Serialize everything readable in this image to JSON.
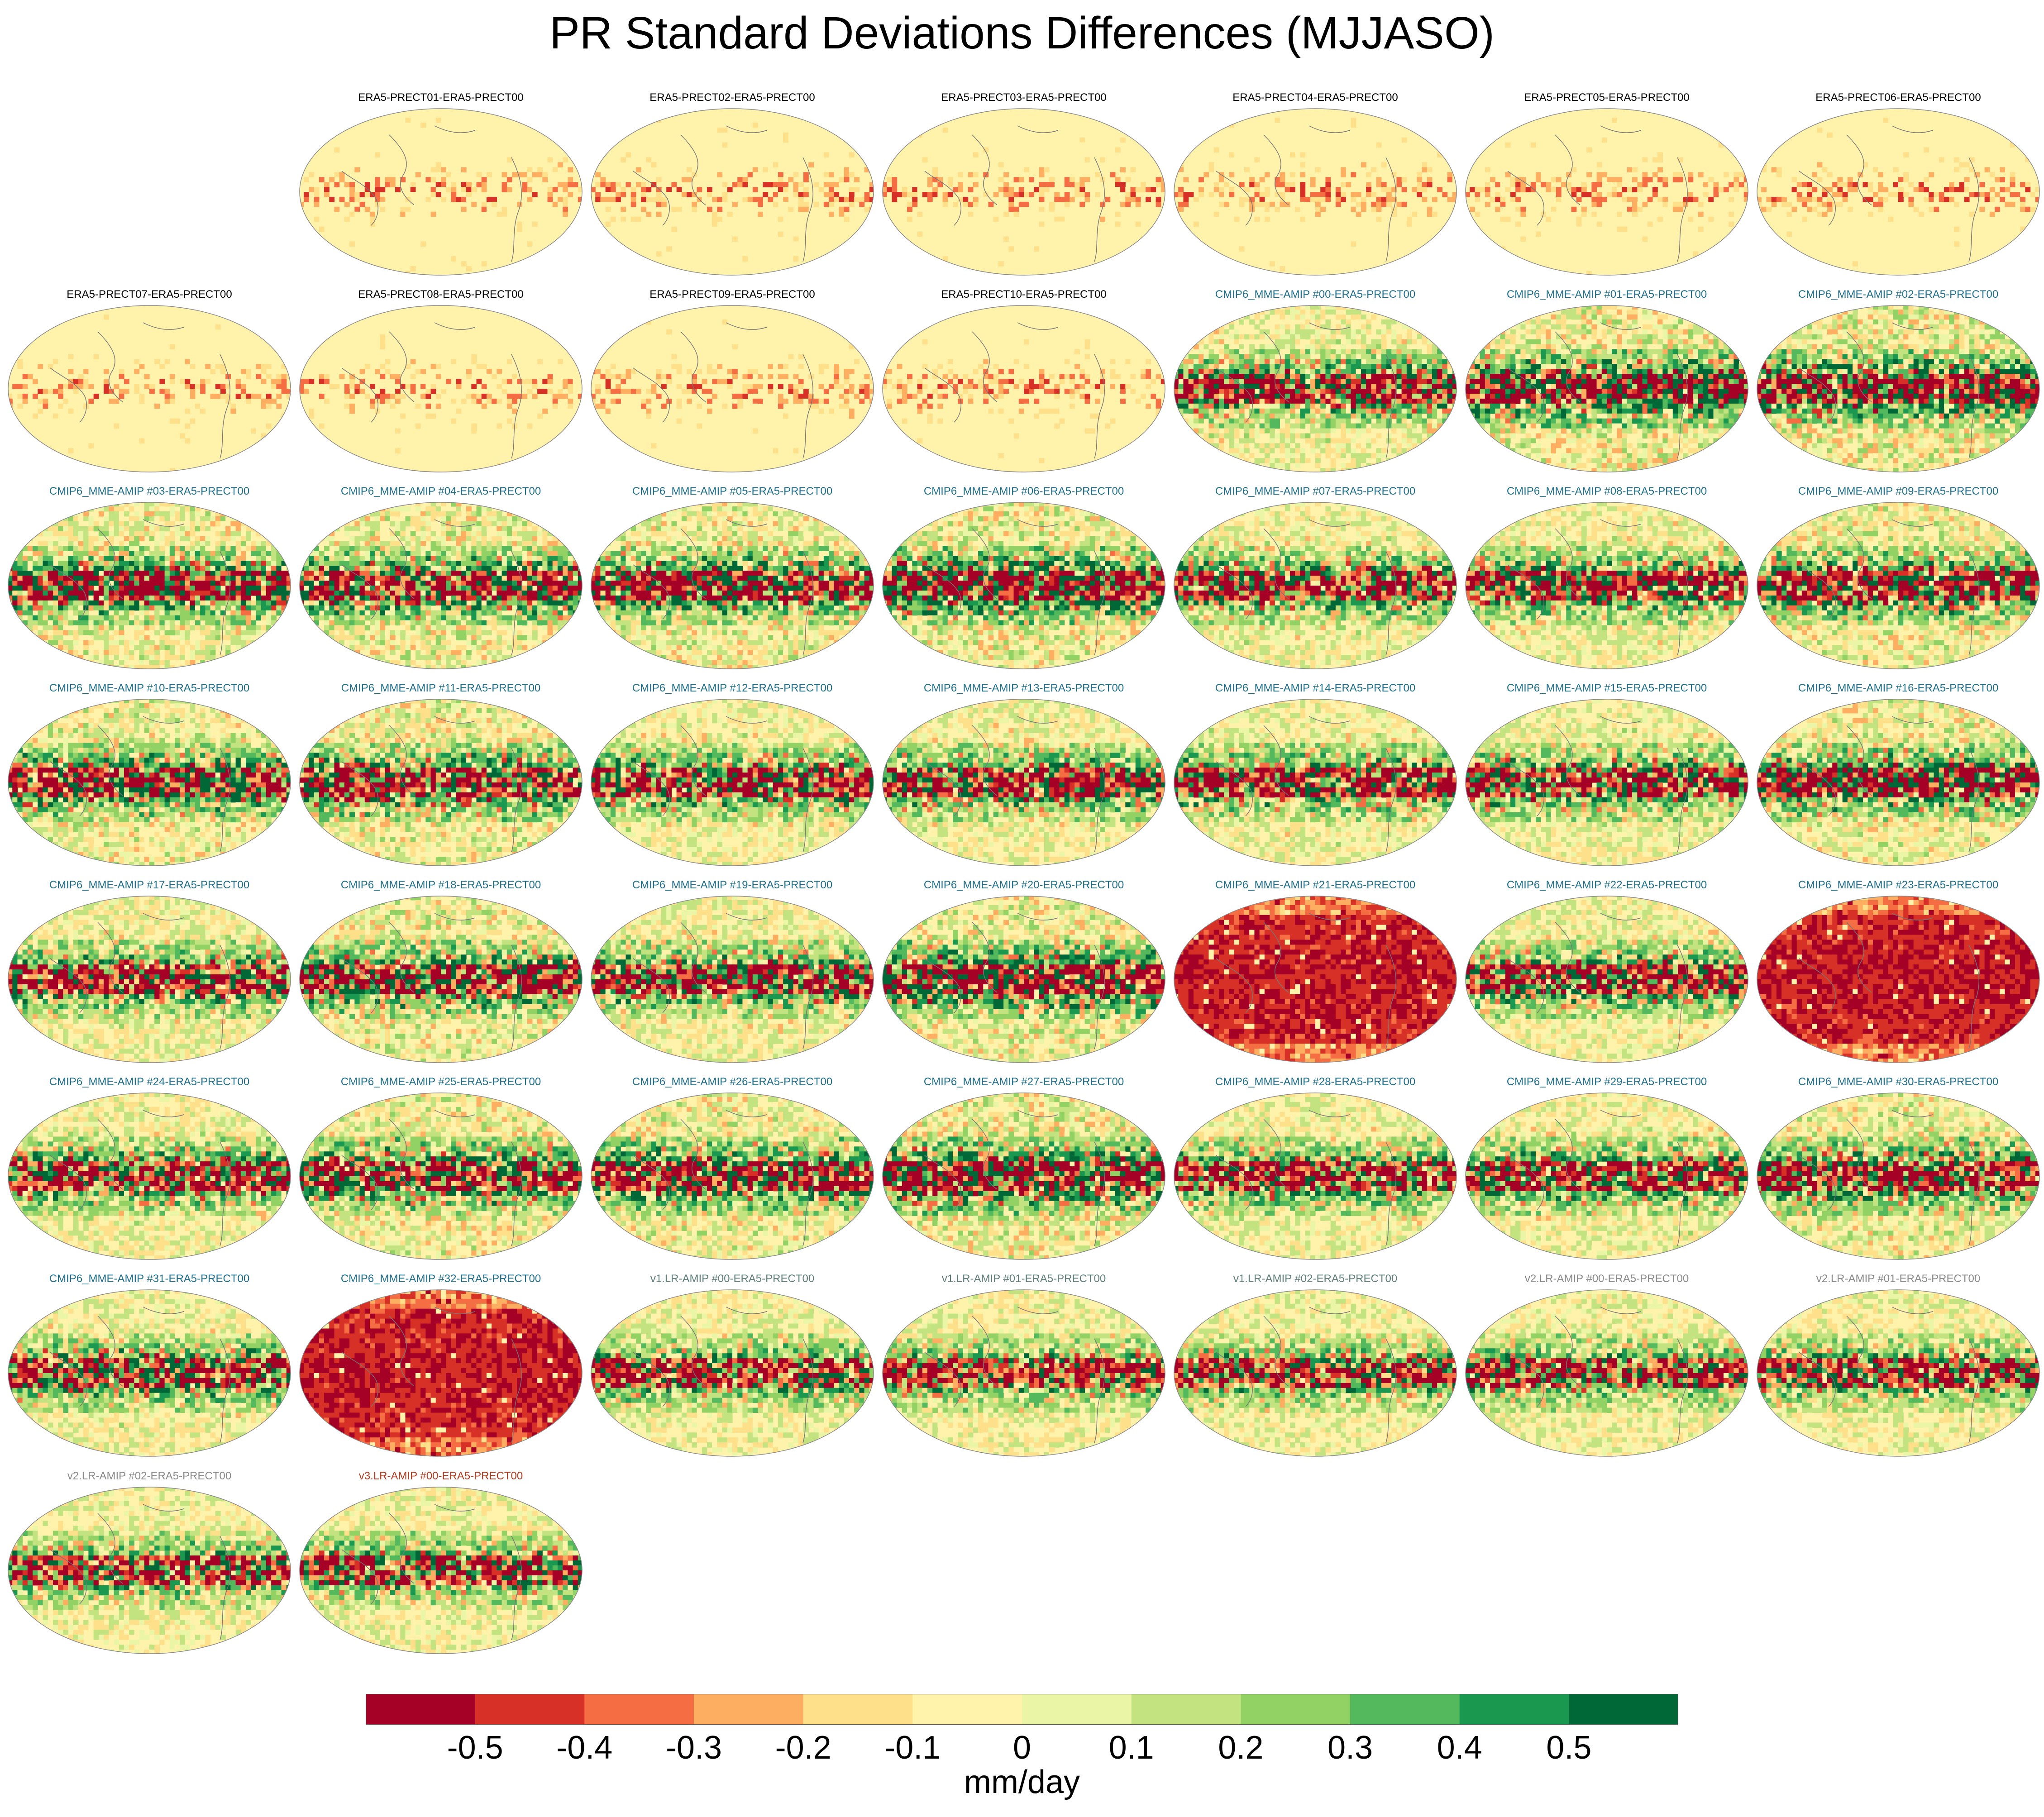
{
  "title": "PR Standard Deviations Differences (MJJASO)",
  "chart_data": {
    "type": "heatmap",
    "title": "PR Standard Deviations Differences (MJJASO)",
    "projection": "global map (elliptical), Pacific-centred",
    "panels": [
      {
        "label": "ERA5-PRECT01-ERA5-PRECT00",
        "group": "era5",
        "intensity": 0.1
      },
      {
        "label": "ERA5-PRECT02-ERA5-PRECT00",
        "group": "era5",
        "intensity": 0.12
      },
      {
        "label": "ERA5-PRECT03-ERA5-PRECT00",
        "group": "era5",
        "intensity": 0.12
      },
      {
        "label": "ERA5-PRECT04-ERA5-PRECT00",
        "group": "era5",
        "intensity": 0.1
      },
      {
        "label": "ERA5-PRECT05-ERA5-PRECT00",
        "group": "era5",
        "intensity": 0.12
      },
      {
        "label": "ERA5-PRECT06-ERA5-PRECT00",
        "group": "era5",
        "intensity": 0.12
      },
      {
        "label": "ERA5-PRECT07-ERA5-PRECT00",
        "group": "era5",
        "intensity": 0.1
      },
      {
        "label": "ERA5-PRECT08-ERA5-PRECT00",
        "group": "era5",
        "intensity": 0.12
      },
      {
        "label": "ERA5-PRECT09-ERA5-PRECT00",
        "group": "era5",
        "intensity": 0.1
      },
      {
        "label": "ERA5-PRECT10-ERA5-PRECT00",
        "group": "era5",
        "intensity": 0.12
      },
      {
        "label": "CMIP6_MME-AMIP  #00-ERA5-PRECT00",
        "group": "cmip6",
        "intensity": 0.8
      },
      {
        "label": "CMIP6_MME-AMIP  #01-ERA5-PRECT00",
        "group": "cmip6",
        "intensity": 1.0
      },
      {
        "label": "CMIP6_MME-AMIP  #02-ERA5-PRECT00",
        "group": "cmip6",
        "intensity": 1.0
      },
      {
        "label": "CMIP6_MME-AMIP  #03-ERA5-PRECT00",
        "group": "cmip6",
        "intensity": 0.9
      },
      {
        "label": "CMIP6_MME-AMIP  #04-ERA5-PRECT00",
        "group": "cmip6",
        "intensity": 0.9
      },
      {
        "label": "CMIP6_MME-AMIP  #05-ERA5-PRECT00",
        "group": "cmip6",
        "intensity": 0.9
      },
      {
        "label": "CMIP6_MME-AMIP  #06-ERA5-PRECT00",
        "group": "cmip6",
        "intensity": 1.0
      },
      {
        "label": "CMIP6_MME-AMIP  #07-ERA5-PRECT00",
        "group": "cmip6",
        "intensity": 0.8
      },
      {
        "label": "CMIP6_MME-AMIP  #08-ERA5-PRECT00",
        "group": "cmip6",
        "intensity": 0.8
      },
      {
        "label": "CMIP6_MME-AMIP  #09-ERA5-PRECT00",
        "group": "cmip6",
        "intensity": 0.9
      },
      {
        "label": "CMIP6_MME-AMIP  #10-ERA5-PRECT00",
        "group": "cmip6",
        "intensity": 0.9
      },
      {
        "label": "CMIP6_MME-AMIP  #11-ERA5-PRECT00",
        "group": "cmip6",
        "intensity": 0.9
      },
      {
        "label": "CMIP6_MME-AMIP  #12-ERA5-PRECT00",
        "group": "cmip6",
        "intensity": 0.8
      },
      {
        "label": "CMIP6_MME-AMIP  #13-ERA5-PRECT00",
        "group": "cmip6",
        "intensity": 0.8
      },
      {
        "label": "CMIP6_MME-AMIP  #14-ERA5-PRECT00",
        "group": "cmip6",
        "intensity": 0.8
      },
      {
        "label": "CMIP6_MME-AMIP  #15-ERA5-PRECT00",
        "group": "cmip6",
        "intensity": 0.8
      },
      {
        "label": "CMIP6_MME-AMIP  #16-ERA5-PRECT00",
        "group": "cmip6",
        "intensity": 0.9
      },
      {
        "label": "CMIP6_MME-AMIP  #17-ERA5-PRECT00",
        "group": "cmip6",
        "intensity": 0.8
      },
      {
        "label": "CMIP6_MME-AMIP  #18-ERA5-PRECT00",
        "group": "cmip6",
        "intensity": 0.9
      },
      {
        "label": "CMIP6_MME-AMIP  #19-ERA5-PRECT00",
        "group": "cmip6",
        "intensity": 0.8
      },
      {
        "label": "CMIP6_MME-AMIP  #20-ERA5-PRECT00",
        "group": "cmip6",
        "intensity": 1.0
      },
      {
        "label": "CMIP6_MME-AMIP  #21-ERA5-PRECT00",
        "group": "cmip6",
        "intensity": 1.0,
        "pattern": "strong-negative"
      },
      {
        "label": "CMIP6_MME-AMIP  #22-ERA5-PRECT00",
        "group": "cmip6",
        "intensity": 0.8
      },
      {
        "label": "CMIP6_MME-AMIP  #23-ERA5-PRECT00",
        "group": "cmip6",
        "intensity": 1.0,
        "pattern": "strong-negative"
      },
      {
        "label": "CMIP6_MME-AMIP  #24-ERA5-PRECT00",
        "group": "cmip6",
        "intensity": 0.8
      },
      {
        "label": "CMIP6_MME-AMIP  #25-ERA5-PRECT00",
        "group": "cmip6",
        "intensity": 0.9
      },
      {
        "label": "CMIP6_MME-AMIP  #26-ERA5-PRECT00",
        "group": "cmip6",
        "intensity": 0.9
      },
      {
        "label": "CMIP6_MME-AMIP  #27-ERA5-PRECT00",
        "group": "cmip6",
        "intensity": 1.0
      },
      {
        "label": "CMIP6_MME-AMIP  #28-ERA5-PRECT00",
        "group": "cmip6",
        "intensity": 0.8
      },
      {
        "label": "CMIP6_MME-AMIP  #29-ERA5-PRECT00",
        "group": "cmip6",
        "intensity": 0.8
      },
      {
        "label": "CMIP6_MME-AMIP  #30-ERA5-PRECT00",
        "group": "cmip6",
        "intensity": 0.9
      },
      {
        "label": "CMIP6_MME-AMIP  #31-ERA5-PRECT00",
        "group": "cmip6",
        "intensity": 0.8
      },
      {
        "label": "CMIP6_MME-AMIP  #32-ERA5-PRECT00",
        "group": "cmip6",
        "intensity": 1.0,
        "pattern": "strong-negative"
      },
      {
        "label": "v1.LR-AMIP  #00-ERA5-PRECT00",
        "group": "v1",
        "intensity": 0.7
      },
      {
        "label": "v1.LR-AMIP  #01-ERA5-PRECT00",
        "group": "v1",
        "intensity": 0.7
      },
      {
        "label": "v1.LR-AMIP  #02-ERA5-PRECT00",
        "group": "v1",
        "intensity": 0.7
      },
      {
        "label": "v2.LR-AMIP  #00-ERA5-PRECT00",
        "group": "v2",
        "intensity": 0.7
      },
      {
        "label": "v2.LR-AMIP  #01-ERA5-PRECT00",
        "group": "v2",
        "intensity": 0.7
      },
      {
        "label": "v2.LR-AMIP  #02-ERA5-PRECT00",
        "group": "v2",
        "intensity": 0.7
      },
      {
        "label": "v3.LR-AMIP  #00-ERA5-PRECT00",
        "group": "v3",
        "intensity": 0.7
      }
    ],
    "label_colors": {
      "era5": "#000000",
      "cmip6": "#1f6f8b",
      "v1": "#5f7f7a",
      "v2": "#8a8a8a",
      "v3": "#b03a1e"
    },
    "colorbar": {
      "colors": [
        "#a50026",
        "#d73027",
        "#f46d43",
        "#fdae61",
        "#fee08b",
        "#fff3ab",
        "#eaf5a6",
        "#c2e380",
        "#92d164",
        "#54b85d",
        "#1a9850",
        "#006837"
      ],
      "tick_values": [
        -0.5,
        -0.4,
        -0.3,
        -0.2,
        -0.1,
        0,
        0.1,
        0.2,
        0.3,
        0.4,
        0.5
      ],
      "tick_labels": [
        "-0.5",
        "-0.4",
        "-0.3",
        "-0.2",
        "-0.1",
        "0",
        "0.1",
        "0.2",
        "0.3",
        "0.4",
        "0.5"
      ],
      "units": "mm/day"
    },
    "background_color": "#fff3ab"
  }
}
